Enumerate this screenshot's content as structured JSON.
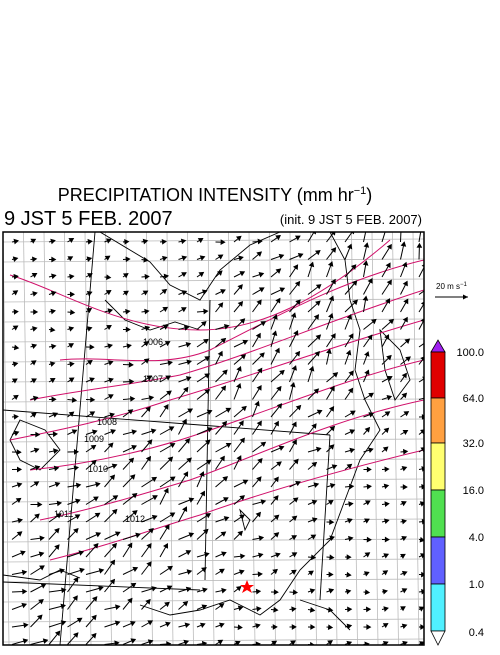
{
  "header": {
    "title": "PRECIPITATION INTENSITY (mm hr",
    "title_exponent": "−1",
    "title_close": ")",
    "valid_time": "9 JST 5 FEB. 2007",
    "init_time": "(init. 9 JST 5 FEB. 2007)"
  },
  "wind_scale": {
    "label": "20 m s",
    "exponent": "−1"
  },
  "colorbar": {
    "labels": [
      "100.0",
      "64.0",
      "32.0",
      "16.0",
      "4.0",
      "1.0",
      "0.4"
    ]
  },
  "contours": {
    "labels": [
      "1006",
      "1007",
      "1008",
      "1009",
      "1010",
      "1011",
      "1012"
    ]
  }
}
